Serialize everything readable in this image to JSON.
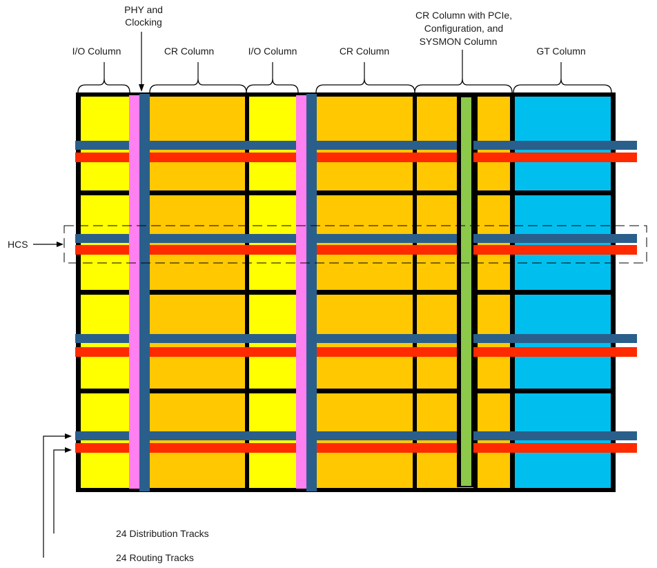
{
  "labels": {
    "io_column_1": "I/O Column",
    "phy_clocking": [
      "PHY and",
      "Clocking"
    ],
    "cr_column_1": "CR Column",
    "io_column_2": "I/O Column",
    "cr_column_2": "CR Column",
    "cr_pcie": [
      "CR Column with PCIe,",
      "Configuration, and",
      "SYSMON Column"
    ],
    "gt_column": "GT Column",
    "hcs": "HCS",
    "distribution_tracks": "24 Distribution Tracks",
    "routing_tracks": "24 Routing Tracks"
  },
  "colors": {
    "io": "#ffff00",
    "cr": "#ffc800",
    "gt": "#00bfef",
    "clock_region_border": "#000000",
    "distribution_track": "#2a5f8c",
    "routing_track": "#ff2a00",
    "phy_clocking": "#ff80f0",
    "sysmon": "#8cc84a"
  },
  "structure": {
    "clock_region_rows": 4,
    "track_bands": 4,
    "hcs_band_index": 1
  }
}
